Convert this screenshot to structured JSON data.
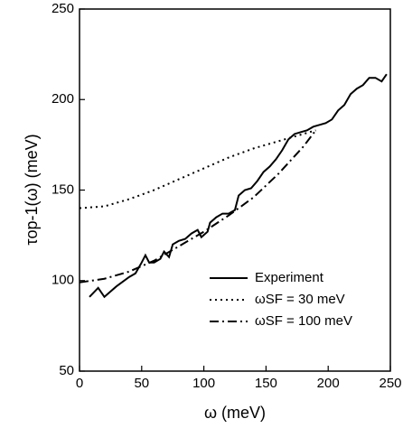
{
  "chart_data": {
    "type": "line",
    "xlabel": "ω (meV)",
    "ylabel": "τop-1(ω) (meV)",
    "xlim": [
      0,
      250
    ],
    "ylim": [
      50,
      250
    ],
    "xticks": [
      0,
      50,
      100,
      150,
      200,
      250
    ],
    "yticks": [
      50,
      100,
      150,
      200,
      250
    ],
    "grid": false,
    "legend": "lower right",
    "series": [
      {
        "name": "Experiment",
        "color": "#000000",
        "style": "solid",
        "x": [
          8,
          15,
          20,
          25,
          30,
          40,
          45,
          50,
          53,
          56,
          60,
          65,
          68,
          72,
          75,
          80,
          85,
          90,
          95,
          98,
          103,
          105,
          110,
          115,
          120,
          125,
          128,
          133,
          138,
          143,
          148,
          153,
          158,
          163,
          168,
          173,
          178,
          183,
          188,
          193,
          198,
          203,
          208,
          213,
          218,
          223,
          228,
          233,
          238,
          243,
          247
        ],
        "values": [
          91,
          96,
          91,
          94,
          97,
          102,
          104,
          110,
          114,
          110,
          110,
          112,
          116,
          113,
          120,
          122,
          123,
          126,
          128,
          124,
          127,
          132,
          135,
          137,
          137,
          139,
          147,
          150,
          151,
          155,
          160,
          163,
          167,
          172,
          178,
          181,
          182,
          183,
          185,
          186,
          187,
          189,
          194,
          197,
          203,
          206,
          208,
          212,
          212,
          210,
          214
        ]
      },
      {
        "name": "ωSF = 30 meV",
        "color": "#000000",
        "style": "dotted",
        "x": [
          0,
          20,
          40,
          60,
          80,
          100,
          120,
          140,
          160,
          180,
          190
        ],
        "values": [
          140,
          141,
          145,
          150,
          156,
          162,
          168,
          173,
          177,
          181,
          183
        ]
      },
      {
        "name": "ωSF = 100 meV",
        "color": "#000000",
        "style": "dashdot",
        "x": [
          0,
          20,
          40,
          60,
          80,
          100,
          120,
          140,
          160,
          180,
          190
        ],
        "values": [
          99,
          101,
          105,
          111,
          119,
          127,
          136,
          146,
          159,
          174,
          183
        ]
      }
    ]
  }
}
